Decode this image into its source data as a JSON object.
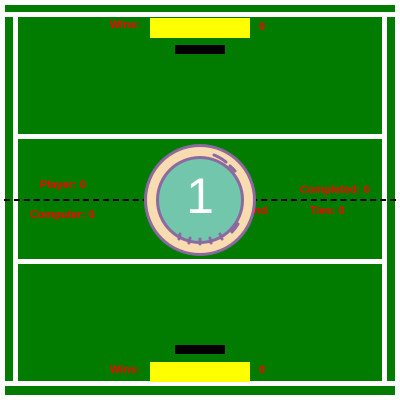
{
  "top": {
    "wins_label": "Wins:",
    "wins_value": "0"
  },
  "bottom": {
    "wins_label": "Wins:",
    "wins_value": "0"
  },
  "left_scores": {
    "player": "Player: 0",
    "computer": "Computer: 0"
  },
  "right_scores": {
    "completed": "Completed: 0",
    "ties": "Ties: 0",
    "partial": "nd"
  },
  "countdown": {
    "value": "1"
  },
  "colors": {
    "field": "#027c00",
    "lines": "#ffffff",
    "text": "#ff0000",
    "wins_bar": "#ffff00",
    "paddle": "#000000",
    "badge_outer": "#8b6aa0",
    "badge_ring": "#f8dcb0",
    "badge_inner": "#72c6ac"
  }
}
